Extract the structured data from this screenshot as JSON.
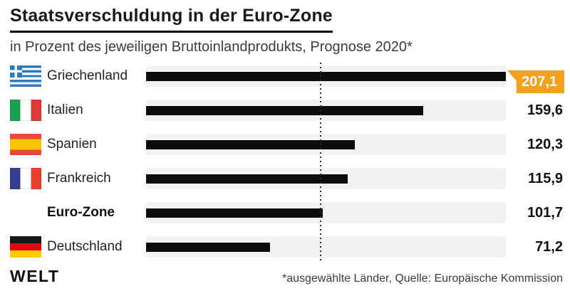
{
  "header": {
    "title": "Staatsverschuldung in der Euro-Zone",
    "subtitle": "in Prozent des jeweiligen Bruttoinlandprodukts, Prognose 2020*"
  },
  "footer": {
    "logo": "WELT",
    "source": "*ausgewählte Länder, Quelle: Europäische Kommission"
  },
  "colors": {
    "highlight_badge": "#f2a01e",
    "bar": "#0d0d0d",
    "track": "#f2f2f2",
    "greece_flag_blue": "#2e7abf"
  },
  "chart_data": {
    "type": "bar",
    "orientation": "horizontal",
    "title": "Staatsverschuldung in der Euro-Zone",
    "subtitle": "in Prozent des jeweiligen Bruttoinlandprodukts, Prognose 2020*",
    "categories": [
      "Griechenland",
      "Italien",
      "Spanien",
      "Frankreich",
      "Euro-Zone",
      "Deutschland"
    ],
    "values": [
      207.1,
      159.6,
      120.3,
      115.9,
      101.7,
      71.2
    ],
    "value_labels": [
      "207,1",
      "159,6",
      "120,3",
      "115,9",
      "101,7",
      "71,2"
    ],
    "flags": [
      "greece",
      "italy",
      "spain",
      "france",
      null,
      "germany"
    ],
    "highlighted_category": "Griechenland",
    "bold_category": "Euro-Zone",
    "xlim": [
      0,
      207.1
    ],
    "reference_line": 100,
    "grid": false,
    "legend": false
  }
}
